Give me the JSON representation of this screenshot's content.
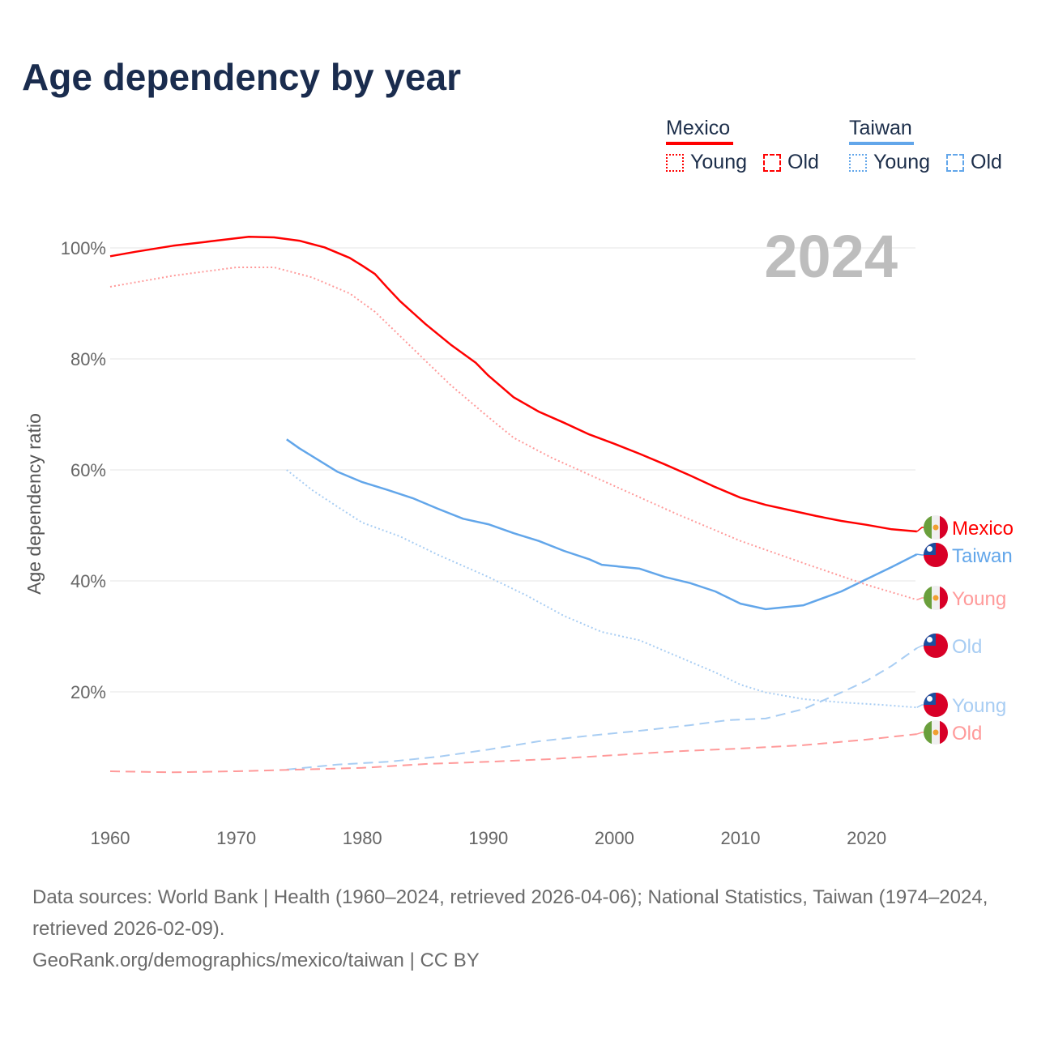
{
  "title": "Age dependency by year",
  "legend": {
    "groups": [
      {
        "name": "Mexico",
        "color": "#ff0000",
        "items": [
          "Young",
          "Old"
        ]
      },
      {
        "name": "Taiwan",
        "color": "#62a6ea",
        "items": [
          "Young",
          "Old"
        ]
      }
    ]
  },
  "year_watermark": "2024",
  "footer": {
    "line1": "Data sources: World Bank | Health (1960–2024, retrieved 2026-04-06); National Statistics, Taiwan (1974–2024, retrieved 2026-02-09).",
    "line2": "GeoRank.org/demographics/mexico/taiwan | CC BY"
  },
  "chart_data": {
    "type": "line",
    "title": "Age dependency by year",
    "xlabel": "",
    "ylabel": "Age dependency ratio",
    "xlim": [
      1960,
      2024
    ],
    "ylim": [
      0,
      105
    ],
    "x_ticks": [
      "1960",
      "1970",
      "1980",
      "1990",
      "2000",
      "2010",
      "2020"
    ],
    "y_ticks": [
      "20%",
      "40%",
      "60%",
      "80%",
      "100%"
    ],
    "grid": true,
    "series": [
      {
        "name": "Mexico",
        "label": "Mexico",
        "country": "Mexico",
        "style": "solid",
        "color": "#ff0000",
        "points": [
          [
            1960,
            98.5
          ],
          [
            1962,
            99.3
          ],
          [
            1965,
            100.4
          ],
          [
            1968,
            101.2
          ],
          [
            1971,
            102.0
          ],
          [
            1973,
            101.9
          ],
          [
            1975,
            101.3
          ],
          [
            1977,
            100.1
          ],
          [
            1979,
            98.2
          ],
          [
            1980,
            96.8
          ],
          [
            1981,
            95.3
          ],
          [
            1982,
            92.8
          ],
          [
            1983,
            90.4
          ],
          [
            1985,
            86.3
          ],
          [
            1987,
            82.6
          ],
          [
            1989,
            79.3
          ],
          [
            1990,
            77.0
          ],
          [
            1992,
            73.1
          ],
          [
            1994,
            70.5
          ],
          [
            1996,
            68.5
          ],
          [
            1998,
            66.4
          ],
          [
            2000,
            64.7
          ],
          [
            2002,
            62.9
          ],
          [
            2004,
            61.0
          ],
          [
            2006,
            59.0
          ],
          [
            2008,
            56.9
          ],
          [
            2010,
            55.0
          ],
          [
            2012,
            53.7
          ],
          [
            2014,
            52.7
          ],
          [
            2016,
            51.7
          ],
          [
            2018,
            50.8
          ],
          [
            2020,
            50.1
          ],
          [
            2022,
            49.3
          ],
          [
            2024,
            48.9
          ]
        ]
      },
      {
        "name": "Taiwan",
        "label": "Taiwan",
        "country": "Taiwan",
        "style": "solid",
        "color": "#62a6ea",
        "points": [
          [
            1974,
            65.5
          ],
          [
            1975,
            63.9
          ],
          [
            1978,
            59.7
          ],
          [
            1980,
            57.8
          ],
          [
            1982,
            56.4
          ],
          [
            1984,
            54.9
          ],
          [
            1986,
            53.0
          ],
          [
            1988,
            51.2
          ],
          [
            1990,
            50.2
          ],
          [
            1992,
            48.6
          ],
          [
            1994,
            47.2
          ],
          [
            1996,
            45.4
          ],
          [
            1998,
            43.9
          ],
          [
            1999,
            42.9
          ],
          [
            2002,
            42.2
          ],
          [
            2004,
            40.7
          ],
          [
            2006,
            39.6
          ],
          [
            2008,
            38.1
          ],
          [
            2010,
            35.9
          ],
          [
            2012,
            34.9
          ],
          [
            2015,
            35.6
          ],
          [
            2018,
            38.1
          ],
          [
            2020,
            40.3
          ],
          [
            2022,
            42.5
          ],
          [
            2024,
            44.8
          ]
        ]
      },
      {
        "name": "Mexico Young",
        "label": "Young",
        "country": "Mexico",
        "style": "dotted",
        "color": "#ff9a9a",
        "points": [
          [
            1960,
            93.0
          ],
          [
            1965,
            95.0
          ],
          [
            1970,
            96.5
          ],
          [
            1973,
            96.5
          ],
          [
            1976,
            94.7
          ],
          [
            1979,
            91.8
          ],
          [
            1981,
            88.5
          ],
          [
            1983,
            84.1
          ],
          [
            1985,
            79.7
          ],
          [
            1987,
            75.3
          ],
          [
            1990,
            69.5
          ],
          [
            1992,
            65.8
          ],
          [
            1995,
            62.2
          ],
          [
            2000,
            57.1
          ],
          [
            2005,
            52.0
          ],
          [
            2010,
            47.2
          ],
          [
            2015,
            43.2
          ],
          [
            2020,
            39.3
          ],
          [
            2024,
            36.6
          ]
        ]
      },
      {
        "name": "Taiwan Old",
        "label": "Old",
        "country": "Taiwan",
        "style": "dashed",
        "color": "#a8cdf3",
        "points": [
          [
            1974,
            6.0
          ],
          [
            1978,
            6.9
          ],
          [
            1982,
            7.4
          ],
          [
            1986,
            8.3
          ],
          [
            1990,
            9.6
          ],
          [
            1994,
            11.1
          ],
          [
            1998,
            12.1
          ],
          [
            2002,
            13.0
          ],
          [
            2006,
            14.0
          ],
          [
            2009,
            14.9
          ],
          [
            2012,
            15.2
          ],
          [
            2015,
            16.9
          ],
          [
            2018,
            19.9
          ],
          [
            2020,
            22.0
          ],
          [
            2022,
            24.7
          ],
          [
            2024,
            27.9
          ]
        ]
      },
      {
        "name": "Taiwan Young",
        "label": "Young",
        "country": "Taiwan",
        "style": "dotted",
        "color": "#a8cdf3",
        "points": [
          [
            1974,
            60.0
          ],
          [
            1976,
            56.4
          ],
          [
            1978,
            53.4
          ],
          [
            1980,
            50.5
          ],
          [
            1983,
            48.0
          ],
          [
            1986,
            44.7
          ],
          [
            1990,
            40.7
          ],
          [
            1993,
            37.4
          ],
          [
            1996,
            33.7
          ],
          [
            1999,
            30.8
          ],
          [
            2002,
            29.3
          ],
          [
            2005,
            26.4
          ],
          [
            2008,
            23.5
          ],
          [
            2010,
            21.3
          ],
          [
            2012,
            19.9
          ],
          [
            2015,
            18.7
          ],
          [
            2018,
            18.1
          ],
          [
            2021,
            17.7
          ],
          [
            2024,
            17.2
          ]
        ]
      },
      {
        "name": "Mexico Old",
        "label": "Old",
        "country": "Mexico",
        "style": "dashed",
        "color": "#ff9a9a",
        "points": [
          [
            1960,
            5.7
          ],
          [
            1965,
            5.5
          ],
          [
            1970,
            5.7
          ],
          [
            1975,
            6.0
          ],
          [
            1980,
            6.3
          ],
          [
            1985,
            7.0
          ],
          [
            1990,
            7.4
          ],
          [
            1995,
            7.9
          ],
          [
            2000,
            8.6
          ],
          [
            2005,
            9.3
          ],
          [
            2010,
            9.8
          ],
          [
            2015,
            10.4
          ],
          [
            2020,
            11.4
          ],
          [
            2024,
            12.4
          ]
        ]
      }
    ]
  }
}
